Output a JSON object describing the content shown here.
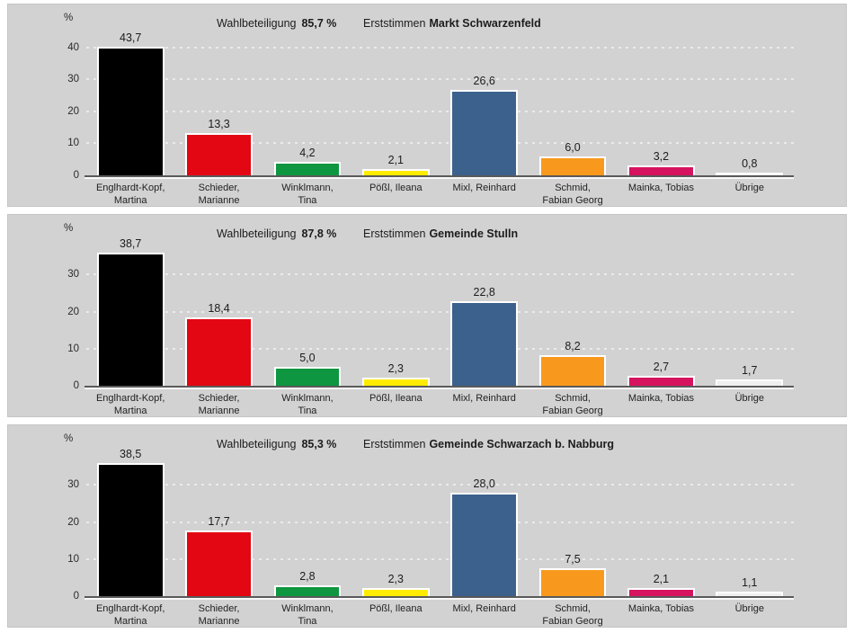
{
  "palette": {
    "panel_background": "#d2d2d2",
    "gridline": "#ebebeb",
    "axis_line": "#5a5a5a",
    "text": "#1c1c1c",
    "bar_border": "#ffffff"
  },
  "chart_data": [
    {
      "type": "bar",
      "title": "Erststimmen Markt Schwarzenfeld",
      "heading": {
        "prefix": "Erststimmen",
        "region": "Markt Schwarzenfeld"
      },
      "turnout": {
        "label": "Wahlbeteiligung",
        "value": "85,7 %"
      },
      "ylabel": "%",
      "xlabel": "",
      "legend": "none",
      "grid": "horizontal-dashed",
      "categories": [
        "Englhardt-Kopf,\nMartina",
        "Schieder,\nMarianne",
        "Winklmann,\nTina",
        "Pößl, Ileana",
        "Mixl, Reinhard",
        "Schmid,\nFabian Georg",
        "Mainka, Tobias",
        "Übrige"
      ],
      "values": [
        43.7,
        13.3,
        4.2,
        2.1,
        26.6,
        6.0,
        3.2,
        0.8
      ],
      "value_labels": [
        "43,7",
        "13,3",
        "4,2",
        "2,1",
        "26,6",
        "6,0",
        "3,2",
        "0,8"
      ],
      "colors": [
        "#000000",
        "#e30613",
        "#0f9640",
        "#ffec00",
        "#3b618c",
        "#f8991d",
        "#d5135e",
        "#efefef"
      ],
      "yticks": [
        0,
        10,
        20,
        30,
        40
      ],
      "ylim": [
        0,
        45
      ]
    },
    {
      "type": "bar",
      "title": "Erststimmen Gemeinde Stulln",
      "heading": {
        "prefix": "Erststimmen",
        "region": "Gemeinde Stulln"
      },
      "turnout": {
        "label": "Wahlbeteiligung",
        "value": "87,8 %"
      },
      "ylabel": "%",
      "xlabel": "",
      "legend": "none",
      "grid": "horizontal-dashed",
      "categories": [
        "Englhardt-Kopf,\nMartina",
        "Schieder,\nMarianne",
        "Winklmann,\nTina",
        "Pößl, Ileana",
        "Mixl, Reinhard",
        "Schmid,\nFabian Georg",
        "Mainka, Tobias",
        "Übrige"
      ],
      "values": [
        38.7,
        18.4,
        5.0,
        2.3,
        22.8,
        8.2,
        2.7,
        1.7
      ],
      "value_labels": [
        "38,7",
        "18,4",
        "5,0",
        "2,3",
        "22,8",
        "8,2",
        "2,7",
        "1,7"
      ],
      "colors": [
        "#000000",
        "#e30613",
        "#0f9640",
        "#ffec00",
        "#3b618c",
        "#f8991d",
        "#d5135e",
        "#efefef"
      ],
      "yticks": [
        0,
        10,
        20,
        30
      ],
      "ylim": [
        0,
        40
      ]
    },
    {
      "type": "bar",
      "title": "Erststimmen Gemeinde Schwarzach b. Nabburg",
      "heading": {
        "prefix": "Erststimmen",
        "region": "Gemeinde Schwarzach b. Nabburg"
      },
      "turnout": {
        "label": "Wahlbeteiligung",
        "value": "85,3 %"
      },
      "ylabel": "%",
      "xlabel": "",
      "legend": "none",
      "grid": "horizontal-dashed",
      "categories": [
        "Englhardt-Kopf,\nMartina",
        "Schieder,\nMarianne",
        "Winklmann,\nTina",
        "Pößl, Ileana",
        "Mixl, Reinhard",
        "Schmid,\nFabian Georg",
        "Mainka, Tobias",
        "Übrige"
      ],
      "values": [
        38.5,
        17.7,
        2.8,
        2.3,
        28.0,
        7.5,
        2.1,
        1.1
      ],
      "value_labels": [
        "38,5",
        "17,7",
        "2,8",
        "2,3",
        "28,0",
        "7,5",
        "2,1",
        "1,1"
      ],
      "colors": [
        "#000000",
        "#e30613",
        "#0f9640",
        "#ffec00",
        "#3b618c",
        "#f8991d",
        "#d5135e",
        "#efefef"
      ],
      "yticks": [
        0,
        10,
        20,
        30
      ],
      "ylim": [
        0,
        40
      ]
    }
  ]
}
